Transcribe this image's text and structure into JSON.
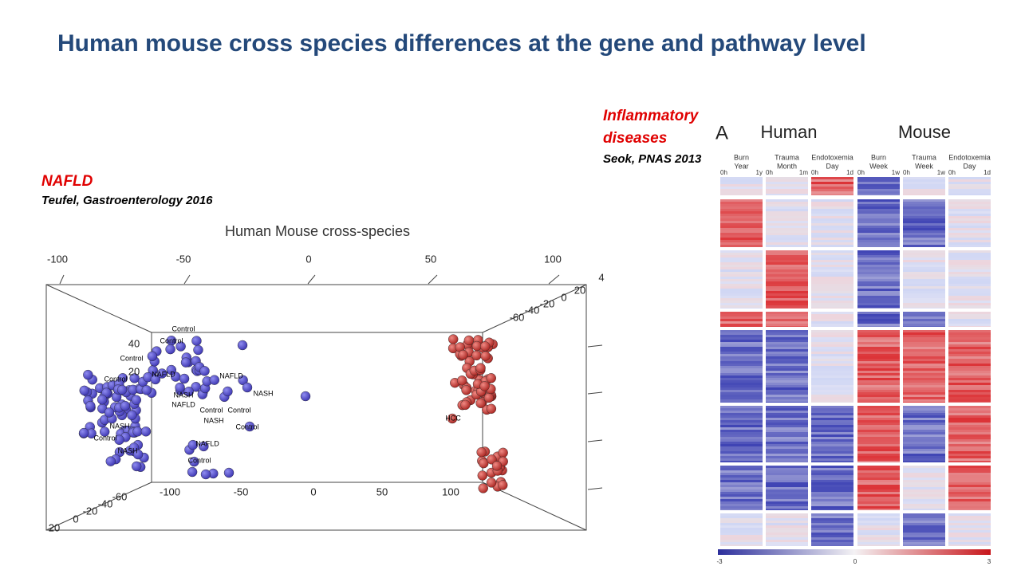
{
  "title": "Human mouse cross species differences at the gene and pathway level",
  "left_figure": {
    "label": "NAFLD",
    "citation": "Teufel, Gastroenterology 2016",
    "plot_title": "Human Mouse cross-species",
    "top_axis_ticks": [
      -100,
      -50,
      0,
      50,
      100
    ],
    "bottom_axis_ticks": [
      -100,
      -50,
      0,
      50,
      100
    ],
    "depth_axis_left_ticks": [
      20,
      0,
      -20,
      -40,
      -60
    ],
    "depth_axis_right_ticks": [
      -60,
      -40,
      -20,
      0,
      20
    ],
    "right_edge_label": 4,
    "inner_ticks": [
      40,
      20
    ],
    "point_labels": [
      "Control",
      "Control",
      "Control",
      "NAFLD",
      "NASH",
      "Control",
      "NAFLD",
      "NASH",
      "Control",
      "NASH",
      "Control",
      "NAFLD",
      "Control",
      "NASH",
      "NAFLD",
      "Control",
      "NASH",
      "Control",
      "HCC"
    ]
  },
  "right_figure": {
    "label_lines": [
      "Inflammatory",
      "diseases"
    ],
    "citation": "Seok, PNAS 2013",
    "panel": "A",
    "groups": [
      "Human",
      "Mouse"
    ],
    "columns": [
      {
        "name": [
          "Burn",
          "Year"
        ],
        "start": "0h",
        "end": "1y"
      },
      {
        "name": [
          "Trauma",
          "Month"
        ],
        "start": "0h",
        "end": "1m"
      },
      {
        "name": [
          "Endotoxemia",
          "Day"
        ],
        "start": "0h",
        "end": "1d"
      },
      {
        "name": [
          "Burn",
          "Week"
        ],
        "start": "0h",
        "end": "1w"
      },
      {
        "name": [
          "Trauma",
          "Week"
        ],
        "start": "0h",
        "end": "1w"
      },
      {
        "name": [
          "Endotoxemia",
          "Day"
        ],
        "start": "0h",
        "end": "1d"
      }
    ],
    "colorbar_ticks": [
      -3,
      0,
      3
    ]
  }
}
